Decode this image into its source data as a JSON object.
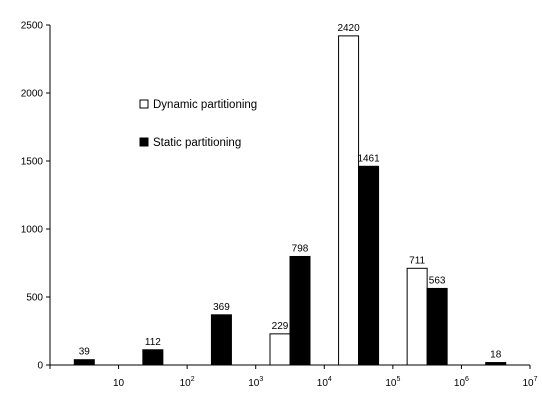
{
  "chart_data": {
    "type": "bar",
    "title": "",
    "xlabel": "",
    "ylabel": "",
    "ylim": [
      0,
      2500
    ],
    "yticks": [
      0,
      500,
      1000,
      1500,
      2000,
      2500
    ],
    "xticks": [
      {
        "base": "10",
        "exp": ""
      },
      {
        "base": "10",
        "exp": "2"
      },
      {
        "base": "10",
        "exp": "3"
      },
      {
        "base": "10",
        "exp": "4"
      },
      {
        "base": "10",
        "exp": "5"
      },
      {
        "base": "10",
        "exp": "6"
      },
      {
        "base": "10",
        "exp": "7"
      }
    ],
    "bins": 7,
    "legend_position": "upper-left inside",
    "series": [
      {
        "name": "Dynamic partitioning",
        "color": "#ffffff",
        "values": [
          0,
          0,
          0,
          229,
          2420,
          711,
          0
        ],
        "labels": [
          "",
          "",
          "",
          "229",
          "2420",
          "711",
          ""
        ]
      },
      {
        "name": "Static partitioning",
        "color": "#000000",
        "values": [
          39,
          112,
          369,
          798,
          1461,
          563,
          18
        ],
        "labels": [
          "39",
          "112",
          "369",
          "798",
          "1461",
          "563",
          "18"
        ]
      }
    ]
  }
}
